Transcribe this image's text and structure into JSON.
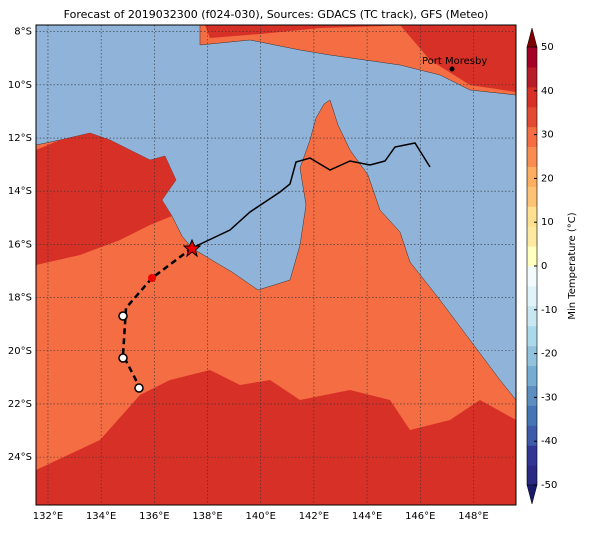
{
  "title": "Forecast of 2019032300 (f024-030), Sources: GDACS (TC track), GFS (Meteo)",
  "place_label": "Port Moresby",
  "map": {
    "xlim": [
      131.55,
      149.6
    ],
    "ylim": [
      -25.8,
      -7.75
    ],
    "xticks": [
      {
        "value": 132,
        "label": "132°E"
      },
      {
        "value": 134,
        "label": "134°E"
      },
      {
        "value": 136,
        "label": "136°E"
      },
      {
        "value": 138,
        "label": "138°E"
      },
      {
        "value": 140,
        "label": "140°E"
      },
      {
        "value": 142,
        "label": "142°E"
      },
      {
        "value": 144,
        "label": "144°E"
      },
      {
        "value": 146,
        "label": "146°E"
      },
      {
        "value": 148,
        "label": "148°E"
      }
    ],
    "yticks": [
      {
        "value": -8,
        "label": "8°S"
      },
      {
        "value": -10,
        "label": "10°S"
      },
      {
        "value": -12,
        "label": "12°S"
      },
      {
        "value": -14,
        "label": "14°S"
      },
      {
        "value": -16,
        "label": "16°S"
      },
      {
        "value": -18,
        "label": "18°S"
      },
      {
        "value": -20,
        "label": "20°S"
      },
      {
        "value": -22,
        "label": "22°S"
      },
      {
        "value": -24,
        "label": "24°S"
      }
    ]
  },
  "colorbar": {
    "label": "Min Temperature (°C)",
    "lim": [
      -50,
      50
    ],
    "ticks": [
      50,
      40,
      30,
      20,
      10,
      0,
      -10,
      -20,
      -30,
      -40,
      -50
    ]
  }
}
